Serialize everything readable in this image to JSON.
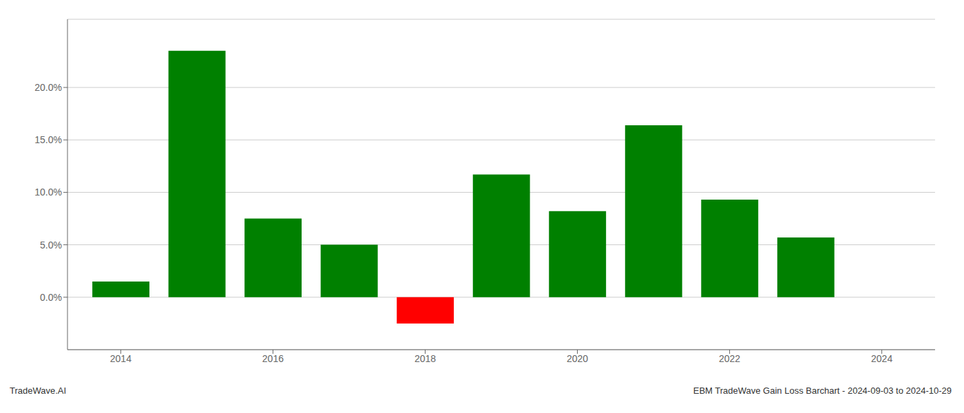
{
  "chart_data": {
    "type": "bar",
    "x": [
      2014,
      2015,
      2016,
      2017,
      2018,
      2019,
      2020,
      2021,
      2022,
      2023
    ],
    "values": [
      0.015,
      0.235,
      0.075,
      0.05,
      -0.025,
      0.117,
      0.082,
      0.164,
      0.093,
      0.057
    ],
    "colors": [
      "#008000",
      "#008000",
      "#008000",
      "#008000",
      "#ff0000",
      "#008000",
      "#008000",
      "#008000",
      "#008000",
      "#008000"
    ],
    "xlim": [
      2013.3,
      2024.7
    ],
    "xticks": [
      2014,
      2016,
      2018,
      2020,
      2022,
      2024
    ],
    "ylim": [
      -0.05,
      0.265
    ],
    "yticks": [
      {
        "value": 0.0,
        "label": "0.0%"
      },
      {
        "value": 0.05,
        "label": "5.0%"
      },
      {
        "value": 0.1,
        "label": "10.0%"
      },
      {
        "value": 0.15,
        "label": "15.0%"
      },
      {
        "value": 0.2,
        "label": "20.0%"
      }
    ],
    "grid": true,
    "annotations": [
      "TradeWave.AI",
      "EBM TradeWave Gain Loss Barchart - 2024-09-03 to 2024-10-29"
    ]
  }
}
